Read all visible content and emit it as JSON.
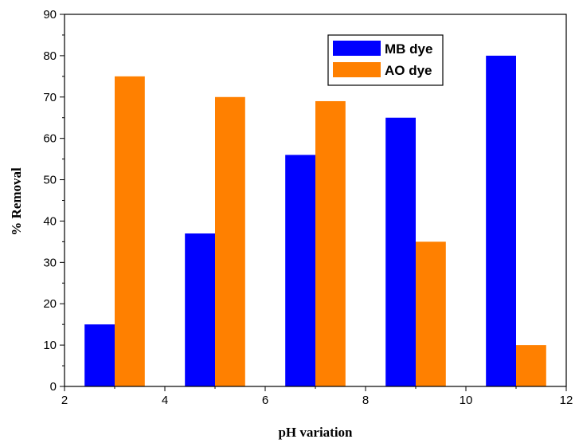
{
  "chart_data": {
    "type": "bar",
    "x": [
      3,
      5,
      7,
      9,
      11
    ],
    "series": [
      {
        "name": "MB dye",
        "color": "#0000ff",
        "values": [
          15,
          37,
          56,
          65,
          80
        ]
      },
      {
        "name": "AO dye",
        "color": "#ff8000",
        "values": [
          75,
          70,
          69,
          35,
          10
        ]
      }
    ],
    "title": "",
    "xlabel": "pH variation",
    "ylabel": "% Removal",
    "xlim": [
      2,
      12
    ],
    "ylim": [
      0,
      90
    ],
    "xticks": [
      2,
      4,
      6,
      8,
      10,
      12
    ],
    "yticks": [
      0,
      10,
      20,
      30,
      40,
      50,
      60,
      70,
      80,
      90
    ],
    "grid": false,
    "legend_position": "top-right"
  }
}
